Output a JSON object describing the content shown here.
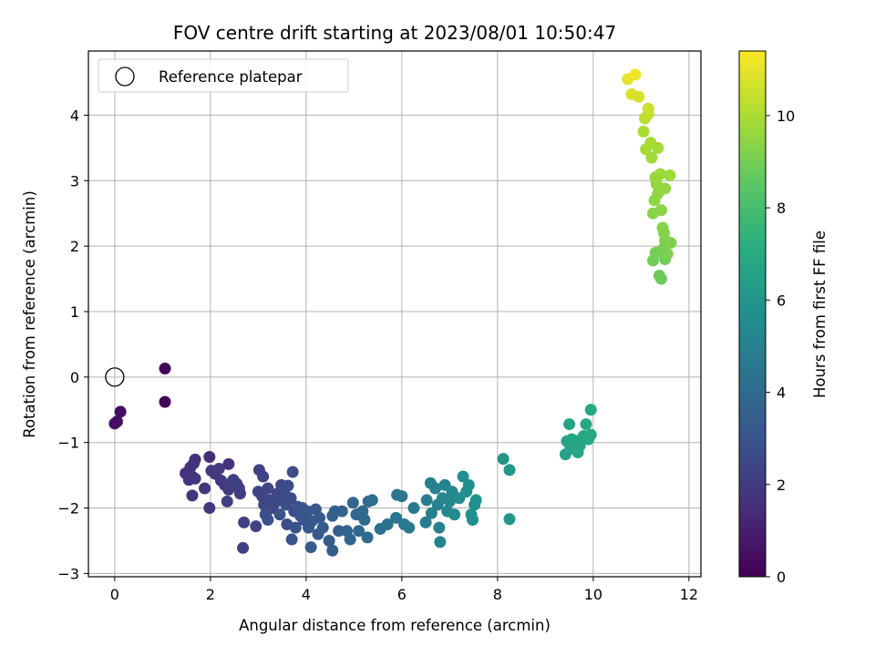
{
  "chart_data": {
    "type": "scatter",
    "title": "FOV centre drift starting at 2023/08/01 10:50:47",
    "xlabel": "Angular distance from reference (arcmin)",
    "ylabel": "Rotation from reference (arcmin)",
    "xlim": [
      -0.55,
      12.25
    ],
    "ylim": [
      -3.05,
      4.98
    ],
    "xticks": [
      "0",
      "2",
      "4",
      "6",
      "8",
      "10",
      "12"
    ],
    "yticks": [
      "−3",
      "−2",
      "−1",
      "0",
      "1",
      "2",
      "3",
      "4"
    ],
    "grid": true,
    "legend": {
      "placement": "top-left",
      "entries": [
        "Reference platepar"
      ]
    },
    "reference_point": {
      "x": 0,
      "y": 0,
      "label": "Reference platepar"
    },
    "colorbar": {
      "label": "Hours from first FF file",
      "range": [
        0,
        11.4
      ],
      "ticks": [
        "0",
        "2",
        "4",
        "6",
        "8",
        "10"
      ],
      "colormap": "viridis"
    },
    "points_columns": [
      "x",
      "y",
      "hours"
    ],
    "points": [
      [
        1.05,
        0.13,
        0.1
      ],
      [
        1.05,
        -0.38,
        0.15
      ],
      [
        0.12,
        -0.53,
        0.4
      ],
      [
        0.05,
        -0.68,
        0.45
      ],
      [
        0.0,
        -0.71,
        0.5
      ],
      [
        1.98,
        -1.22,
        1.5
      ],
      [
        2.38,
        -1.33,
        1.55
      ],
      [
        1.68,
        -1.26,
        1.6
      ],
      [
        1.65,
        -1.32,
        1.62
      ],
      [
        1.58,
        -1.38,
        1.65
      ],
      [
        1.55,
        -1.47,
        1.68
      ],
      [
        1.48,
        -1.47,
        1.7
      ],
      [
        1.62,
        -1.52,
        1.72
      ],
      [
        1.68,
        -1.55,
        1.75
      ],
      [
        1.55,
        -1.57,
        1.78
      ],
      [
        1.62,
        -1.81,
        1.8
      ],
      [
        1.88,
        -1.7,
        1.82
      ],
      [
        1.98,
        -2.0,
        1.85
      ],
      [
        2.02,
        -1.43,
        1.9
      ],
      [
        2.1,
        -1.48,
        1.92
      ],
      [
        2.18,
        -1.4,
        1.95
      ],
      [
        2.22,
        -1.58,
        1.98
      ],
      [
        2.3,
        -1.65,
        2.0
      ],
      [
        2.38,
        -1.72,
        2.02
      ],
      [
        2.42,
        -1.62,
        2.05
      ],
      [
        2.48,
        -1.57,
        2.08
      ],
      [
        2.55,
        -1.63,
        2.1
      ],
      [
        2.6,
        -1.7,
        2.12
      ],
      [
        2.62,
        -1.78,
        2.15
      ],
      [
        2.35,
        -1.9,
        2.18
      ],
      [
        2.7,
        -2.22,
        2.2
      ],
      [
        2.68,
        -2.61,
        2.22
      ],
      [
        2.95,
        -2.28,
        2.25
      ],
      [
        3.02,
        -1.42,
        2.28
      ],
      [
        3.1,
        -1.52,
        2.3
      ],
      [
        3.0,
        -1.75,
        2.35
      ],
      [
        3.08,
        -1.82,
        2.38
      ],
      [
        3.2,
        -1.7,
        2.4
      ],
      [
        3.25,
        -1.88,
        2.42
      ],
      [
        3.12,
        -1.95,
        2.45
      ],
      [
        3.18,
        -2.05,
        2.48
      ],
      [
        3.3,
        -2.0,
        2.5
      ],
      [
        3.35,
        -1.92,
        2.52
      ],
      [
        3.4,
        -1.78,
        2.55
      ],
      [
        3.48,
        -1.65,
        2.58
      ],
      [
        3.55,
        -1.72,
        2.6
      ],
      [
        3.62,
        -1.66,
        2.62
      ],
      [
        3.5,
        -1.88,
        2.65
      ],
      [
        3.58,
        -1.95,
        2.68
      ],
      [
        3.68,
        -1.85,
        2.7
      ],
      [
        3.72,
        -1.45,
        2.72
      ],
      [
        3.75,
        -2.05,
        2.75
      ],
      [
        3.6,
        -2.25,
        2.78
      ],
      [
        3.2,
        -2.18,
        2.8
      ],
      [
        3.15,
        -2.1,
        2.82
      ],
      [
        3.45,
        -2.1,
        2.85
      ],
      [
        3.82,
        -1.98,
        2.88
      ],
      [
        3.88,
        -2.12,
        2.9
      ],
      [
        3.78,
        -2.3,
        2.95
      ],
      [
        3.7,
        -2.48,
        3.0
      ],
      [
        3.92,
        -2.0,
        3.02
      ],
      [
        3.95,
        -2.18,
        3.05
      ],
      [
        4.02,
        -2.05,
        3.08
      ],
      [
        4.05,
        -2.3,
        3.1
      ],
      [
        4.12,
        -2.2,
        3.12
      ],
      [
        4.2,
        -2.02,
        3.15
      ],
      [
        4.25,
        -2.4,
        3.18
      ],
      [
        4.1,
        -2.6,
        3.2
      ],
      [
        4.28,
        -2.15,
        3.25
      ],
      [
        4.35,
        -2.3,
        3.3
      ],
      [
        4.48,
        -2.5,
        3.35
      ],
      [
        4.55,
        -2.65,
        3.4
      ],
      [
        4.55,
        -2.12,
        3.45
      ],
      [
        4.6,
        -2.05,
        3.5
      ],
      [
        4.68,
        -2.35,
        3.55
      ],
      [
        4.75,
        -2.05,
        3.6
      ],
      [
        4.85,
        -2.35,
        3.65
      ],
      [
        4.92,
        -2.48,
        3.7
      ],
      [
        4.98,
        -1.92,
        3.75
      ],
      [
        5.05,
        -2.1,
        3.8
      ],
      [
        5.1,
        -2.35,
        3.85
      ],
      [
        5.18,
        -2.05,
        3.9
      ],
      [
        5.22,
        -2.18,
        3.95
      ],
      [
        5.28,
        -2.45,
        4.0
      ],
      [
        5.3,
        -1.9,
        4.05
      ],
      [
        5.38,
        -1.88,
        4.1
      ],
      [
        5.55,
        -2.32,
        4.2
      ],
      [
        5.7,
        -2.25,
        4.3
      ],
      [
        5.9,
        -1.8,
        4.4
      ],
      [
        5.88,
        -2.15,
        4.45
      ],
      [
        6.0,
        -1.82,
        4.5
      ],
      [
        6.05,
        -2.25,
        4.55
      ],
      [
        6.15,
        -2.3,
        4.6
      ],
      [
        6.25,
        -2.0,
        4.7
      ],
      [
        6.5,
        -2.22,
        4.8
      ],
      [
        6.52,
        -1.88,
        4.85
      ],
      [
        6.6,
        -1.62,
        4.9
      ],
      [
        6.62,
        -2.08,
        4.95
      ],
      [
        6.7,
        -1.7,
        5.0
      ],
      [
        6.75,
        -1.95,
        5.05
      ],
      [
        6.78,
        -2.3,
        5.1
      ],
      [
        6.8,
        -2.52,
        5.15
      ],
      [
        6.85,
        -1.85,
        5.2
      ],
      [
        6.9,
        -1.65,
        5.25
      ],
      [
        6.95,
        -2.05,
        5.3
      ],
      [
        7.0,
        -1.9,
        5.35
      ],
      [
        7.05,
        -1.75,
        5.4
      ],
      [
        7.1,
        -2.1,
        5.45
      ],
      [
        7.2,
        -1.85,
        5.5
      ],
      [
        7.28,
        -1.52,
        5.55
      ],
      [
        7.35,
        -1.75,
        5.6
      ],
      [
        7.4,
        -1.65,
        5.65
      ],
      [
        7.45,
        -2.1,
        5.7
      ],
      [
        7.48,
        -2.18,
        5.72
      ],
      [
        7.52,
        -1.95,
        5.75
      ],
      [
        7.55,
        -1.88,
        5.78
      ],
      [
        8.12,
        -1.25,
        6.0
      ],
      [
        8.25,
        -1.42,
        6.05
      ],
      [
        8.25,
        -2.17,
        6.1
      ],
      [
        9.42,
        -1.18,
        6.6
      ],
      [
        9.45,
        -0.98,
        6.62
      ],
      [
        9.52,
        -1.05,
        6.65
      ],
      [
        9.55,
        -0.95,
        6.68
      ],
      [
        9.5,
        -0.72,
        6.7
      ],
      [
        9.6,
        -1.1,
        6.72
      ],
      [
        9.65,
        -0.98,
        6.75
      ],
      [
        9.68,
        -1.15,
        6.78
      ],
      [
        9.72,
        -1.05,
        6.8
      ],
      [
        9.75,
        -0.95,
        6.82
      ],
      [
        9.8,
        -0.9,
        6.85
      ],
      [
        9.85,
        -0.72,
        6.88
      ],
      [
        9.9,
        -0.95,
        6.9
      ],
      [
        9.95,
        -0.88,
        6.92
      ],
      [
        9.95,
        -0.5,
        6.95
      ],
      [
        11.42,
        1.5,
        8.8
      ],
      [
        11.38,
        1.55,
        8.85
      ],
      [
        11.5,
        1.8,
        8.9
      ],
      [
        11.25,
        1.78,
        8.95
      ],
      [
        11.3,
        1.9,
        9.0
      ],
      [
        11.45,
        1.95,
        9.05
      ],
      [
        11.55,
        1.88,
        9.1
      ],
      [
        11.5,
        2.08,
        9.15
      ],
      [
        11.62,
        2.05,
        9.2
      ],
      [
        11.48,
        2.2,
        9.25
      ],
      [
        11.45,
        2.28,
        9.3
      ],
      [
        11.25,
        2.5,
        9.35
      ],
      [
        11.42,
        2.55,
        9.4
      ],
      [
        11.28,
        2.7,
        9.45
      ],
      [
        11.35,
        2.8,
        9.5
      ],
      [
        11.5,
        2.88,
        9.55
      ],
      [
        11.32,
        2.95,
        9.6
      ],
      [
        11.3,
        3.05,
        9.65
      ],
      [
        11.4,
        3.1,
        9.7
      ],
      [
        11.6,
        3.08,
        9.75
      ],
      [
        11.22,
        3.35,
        9.8
      ],
      [
        11.35,
        3.5,
        9.85
      ],
      [
        11.1,
        3.48,
        9.9
      ],
      [
        11.2,
        3.58,
        9.95
      ],
      [
        11.05,
        3.75,
        10.0
      ],
      [
        11.08,
        3.95,
        10.2
      ],
      [
        11.15,
        4.02,
        10.4
      ],
      [
        11.15,
        4.1,
        10.5
      ],
      [
        10.95,
        4.28,
        10.7
      ],
      [
        10.8,
        4.32,
        10.8
      ],
      [
        10.72,
        4.55,
        11.0
      ],
      [
        10.88,
        4.62,
        11.2
      ]
    ]
  }
}
